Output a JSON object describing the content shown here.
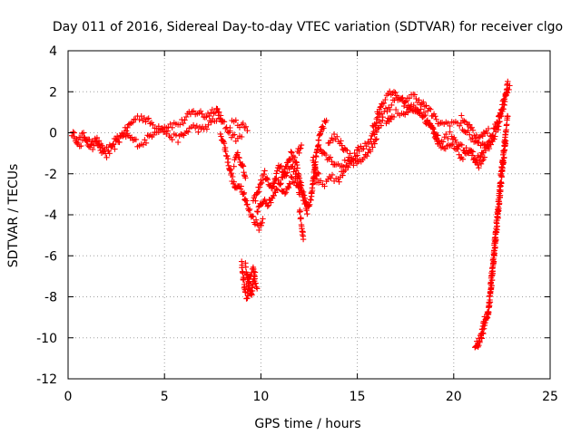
{
  "chart_data": {
    "type": "scatter",
    "title": "Day 011 of 2016, Sidereal Day-to-day VTEC variation (SDTVAR) for receiver clgo",
    "xlabel": "GPS time / hours",
    "ylabel": "SDTVAR / TECUs",
    "xlim": [
      0,
      25
    ],
    "ylim": [
      -12,
      4
    ],
    "xticks": [
      0,
      5,
      10,
      15,
      20,
      25
    ],
    "yticks": [
      4,
      2,
      0,
      -2,
      -4,
      -6,
      -8,
      -10,
      -12
    ],
    "grid": true,
    "marker": "+",
    "color": "#ff0000",
    "series": [
      {
        "name": "SDTVAR",
        "tracks": [
          [
            [
              0.2,
              0.0
            ],
            [
              0.5,
              -0.4
            ],
            [
              0.8,
              -0.1
            ],
            [
              1.1,
              -0.5
            ],
            [
              1.4,
              -0.2
            ],
            [
              1.7,
              -0.7
            ],
            [
              2.0,
              -1.1
            ],
            [
              2.3,
              -0.8
            ],
            [
              2.6,
              -0.4
            ],
            [
              2.9,
              0.0
            ],
            [
              3.2,
              0.4
            ],
            [
              3.5,
              0.7
            ],
            [
              3.8,
              0.8
            ],
            [
              4.1,
              0.6
            ],
            [
              4.4,
              0.4
            ],
            [
              4.7,
              0.3
            ],
            [
              5.0,
              0.3
            ],
            [
              5.3,
              0.4
            ],
            [
              5.6,
              0.4
            ],
            [
              5.9,
              0.5
            ],
            [
              6.2,
              0.8
            ],
            [
              6.5,
              1.0
            ],
            [
              6.8,
              1.0
            ],
            [
              7.1,
              0.8
            ],
            [
              7.4,
              1.0
            ],
            [
              7.7,
              1.2
            ],
            [
              8.0,
              0.6
            ]
          ],
          [
            [
              0.3,
              -0.3
            ],
            [
              0.6,
              -0.6
            ],
            [
              0.9,
              -0.3
            ],
            [
              1.2,
              -0.7
            ],
            [
              1.5,
              -0.5
            ],
            [
              1.8,
              -0.9
            ],
            [
              2.1,
              -0.8
            ],
            [
              2.4,
              -0.4
            ],
            [
              2.7,
              -0.2
            ],
            [
              3.0,
              -0.1
            ],
            [
              3.3,
              -0.3
            ],
            [
              3.6,
              -0.5
            ],
            [
              3.9,
              -0.5
            ],
            [
              4.2,
              -0.2
            ],
            [
              4.5,
              0.1
            ],
            [
              4.8,
              0.2
            ],
            [
              5.1,
              0.0
            ],
            [
              5.4,
              -0.2
            ],
            [
              5.7,
              -0.3
            ],
            [
              6.0,
              -0.1
            ],
            [
              6.3,
              0.2
            ],
            [
              6.6,
              0.3
            ],
            [
              6.9,
              0.1
            ],
            [
              7.2,
              0.3
            ],
            [
              7.5,
              0.6
            ],
            [
              7.8,
              0.7
            ],
            [
              8.1,
              0.4
            ],
            [
              8.4,
              0.0
            ],
            [
              8.7,
              -0.3
            ],
            [
              9.0,
              -0.2
            ]
          ],
          [
            [
              8.4,
              0.4
            ],
            [
              8.7,
              0.5
            ],
            [
              9.0,
              0.4
            ],
            [
              9.3,
              0.1
            ]
          ],
          [
            [
              7.9,
              0.0
            ],
            [
              8.1,
              -0.6
            ],
            [
              8.3,
              -1.4
            ],
            [
              8.5,
              -2.2
            ],
            [
              8.7,
              -2.8
            ],
            [
              8.9,
              -2.5
            ],
            [
              9.1,
              -2.9
            ],
            [
              9.3,
              -3.6
            ],
            [
              9.5,
              -4.0
            ],
            [
              9.7,
              -4.3
            ],
            [
              9.9,
              -4.6
            ],
            [
              10.1,
              -4.2
            ]
          ],
          [
            [
              8.6,
              -1.5
            ],
            [
              8.8,
              -1.0
            ],
            [
              9.0,
              -1.5
            ],
            [
              9.2,
              -2.2
            ]
          ],
          [
            [
              9.6,
              -3.4
            ],
            [
              9.8,
              -3.0
            ],
            [
              10.0,
              -2.4
            ],
            [
              10.2,
              -2.0
            ],
            [
              10.4,
              -2.5
            ],
            [
              10.6,
              -2.8
            ],
            [
              10.8,
              -2.0
            ],
            [
              11.0,
              -1.6
            ],
            [
              11.2,
              -1.9
            ],
            [
              11.4,
              -1.4
            ],
            [
              11.6,
              -1.0
            ],
            [
              11.8,
              -1.4
            ],
            [
              12.0,
              -2.2
            ],
            [
              12.2,
              -3.2
            ],
            [
              12.4,
              -3.8
            ],
            [
              12.6,
              -3.2
            ],
            [
              12.8,
              -1.6
            ],
            [
              13.0,
              -0.4
            ],
            [
              13.2,
              0.3
            ],
            [
              13.4,
              0.6
            ]
          ],
          [
            [
              9.8,
              -3.9
            ],
            [
              10.0,
              -3.5
            ],
            [
              10.2,
              -3.2
            ],
            [
              10.4,
              -3.5
            ],
            [
              10.6,
              -3.1
            ],
            [
              10.8,
              -2.7
            ],
            [
              11.0,
              -2.5
            ],
            [
              11.2,
              -2.9
            ],
            [
              11.4,
              -2.6
            ],
            [
              11.6,
              -2.2
            ],
            [
              11.8,
              -2.4
            ],
            [
              12.0,
              -3.0
            ]
          ],
          [
            [
              10.8,
              -2.3
            ],
            [
              11.0,
              -2.4
            ],
            [
              11.2,
              -2.2
            ],
            [
              11.4,
              -1.8
            ],
            [
              11.6,
              -1.6
            ],
            [
              11.8,
              -1.9
            ],
            [
              12.0,
              -2.5
            ],
            [
              12.2,
              -3.0
            ],
            [
              12.4,
              -3.5
            ]
          ],
          [
            [
              12.0,
              -3.8
            ],
            [
              12.1,
              -4.4
            ],
            [
              12.2,
              -5.2
            ]
          ],
          [
            [
              11.9,
              -1.0
            ],
            [
              12.1,
              -0.6
            ]
          ],
          [
            [
              9.2,
              -6.5
            ],
            [
              9.3,
              -7.0
            ],
            [
              9.4,
              -7.6
            ],
            [
              9.5,
              -8.0
            ],
            [
              9.6,
              -7.3
            ],
            [
              9.7,
              -6.8
            ]
          ],
          [
            [
              9.0,
              -6.4
            ],
            [
              9.1,
              -7.2
            ],
            [
              9.2,
              -7.9
            ],
            [
              9.3,
              -8.1
            ],
            [
              9.4,
              -7.2
            ],
            [
              9.6,
              -6.7
            ],
            [
              9.7,
              -7.3
            ],
            [
              9.8,
              -7.6
            ]
          ],
          [
            [
              12.7,
              -1.2
            ],
            [
              12.8,
              -1.6
            ],
            [
              12.9,
              -2.2
            ],
            [
              13.0,
              -2.0
            ]
          ],
          [
            [
              12.8,
              -2.4
            ],
            [
              13.1,
              -2.5
            ],
            [
              13.4,
              -2.4
            ],
            [
              13.7,
              -2.2
            ],
            [
              14.0,
              -2.3
            ],
            [
              14.3,
              -1.9
            ],
            [
              14.6,
              -1.6
            ],
            [
              14.9,
              -1.5
            ],
            [
              15.2,
              -1.3
            ],
            [
              15.5,
              -1.0
            ],
            [
              15.8,
              -0.6
            ],
            [
              16.0,
              -0.3
            ]
          ],
          [
            [
              13.0,
              -0.6
            ],
            [
              13.3,
              -1.0
            ],
            [
              13.6,
              -1.3
            ],
            [
              13.9,
              -1.5
            ],
            [
              14.2,
              -1.6
            ],
            [
              14.5,
              -1.4
            ],
            [
              14.8,
              -1.2
            ],
            [
              15.1,
              -0.8
            ],
            [
              15.4,
              -0.6
            ],
            [
              15.7,
              -0.3
            ],
            [
              16.0,
              0.2
            ],
            [
              16.3,
              0.6
            ]
          ],
          [
            [
              13.5,
              -0.6
            ],
            [
              13.8,
              -0.2
            ],
            [
              14.1,
              -0.4
            ],
            [
              14.4,
              -0.9
            ],
            [
              14.7,
              -1.2
            ],
            [
              15.0,
              -1.1
            ]
          ],
          [
            [
              15.8,
              0.2
            ],
            [
              16.1,
              0.7
            ],
            [
              16.4,
              1.0
            ],
            [
              16.7,
              1.3
            ],
            [
              17.0,
              1.6
            ],
            [
              17.3,
              1.5
            ],
            [
              17.6,
              1.7
            ],
            [
              17.9,
              1.8
            ],
            [
              18.2,
              1.6
            ],
            [
              18.5,
              1.3
            ],
            [
              18.8,
              1.0
            ],
            [
              19.1,
              0.6
            ],
            [
              19.4,
              0.4
            ],
            [
              19.7,
              0.5
            ],
            [
              20.0,
              0.5
            ],
            [
              20.3,
              0.4
            ],
            [
              20.6,
              0.1
            ],
            [
              20.9,
              -0.2
            ],
            [
              21.2,
              -0.5
            ],
            [
              21.5,
              -0.6
            ],
            [
              21.8,
              -0.8
            ],
            [
              22.1,
              -0.2
            ],
            [
              22.3,
              0.3
            ],
            [
              22.5,
              1.0
            ],
            [
              22.7,
              1.8
            ],
            [
              22.8,
              2.5
            ]
          ],
          [
            [
              16.0,
              0.8
            ],
            [
              16.3,
              1.5
            ],
            [
              16.6,
              1.8
            ],
            [
              16.9,
              2.0
            ],
            [
              17.2,
              1.7
            ],
            [
              17.5,
              1.4
            ],
            [
              17.8,
              1.2
            ],
            [
              18.1,
              1.1
            ],
            [
              18.4,
              0.8
            ],
            [
              18.7,
              0.4
            ],
            [
              19.0,
              0.0
            ],
            [
              19.3,
              -0.4
            ],
            [
              19.6,
              -0.2
            ],
            [
              19.9,
              -0.1
            ],
            [
              20.2,
              -0.5
            ],
            [
              20.5,
              -0.8
            ],
            [
              20.8,
              -1.0
            ],
            [
              21.1,
              -1.3
            ],
            [
              21.4,
              -1.1
            ],
            [
              21.7,
              -0.6
            ],
            [
              22.0,
              -0.1
            ],
            [
              22.3,
              0.6
            ],
            [
              22.6,
              1.6
            ],
            [
              22.9,
              2.3
            ]
          ],
          [
            [
              16.5,
              0.4
            ],
            [
              16.8,
              0.9
            ],
            [
              17.1,
              1.0
            ],
            [
              17.4,
              0.9
            ],
            [
              17.7,
              1.1
            ],
            [
              18.0,
              1.3
            ],
            [
              18.3,
              1.0
            ],
            [
              18.6,
              0.7
            ],
            [
              18.9,
              0.3
            ],
            [
              19.2,
              -0.6
            ],
            [
              19.5,
              -0.9
            ],
            [
              19.8,
              -0.6
            ],
            [
              20.1,
              -0.8
            ],
            [
              20.4,
              -1.2
            ],
            [
              20.7,
              -0.9
            ],
            [
              21.0,
              -1.1
            ],
            [
              21.3,
              -1.6
            ],
            [
              21.6,
              -1.2
            ]
          ],
          [
            [
              20.4,
              0.7
            ],
            [
              20.7,
              0.4
            ],
            [
              21.0,
              0.0
            ],
            [
              21.3,
              -0.4
            ],
            [
              21.5,
              -0.2
            ],
            [
              21.8,
              0.2
            ]
          ],
          [
            [
              21.1,
              -10.6
            ],
            [
              21.3,
              -10.2
            ],
            [
              21.5,
              -9.8
            ],
            [
              21.7,
              -9.2
            ],
            [
              21.8,
              -8.6
            ],
            [
              21.9,
              -7.6
            ],
            [
              22.0,
              -6.6
            ],
            [
              22.1,
              -5.6
            ],
            [
              22.2,
              -4.6
            ],
            [
              22.3,
              -3.6
            ],
            [
              22.4,
              -2.6
            ],
            [
              22.5,
              -1.6
            ],
            [
              22.6,
              -0.8
            ],
            [
              22.7,
              0.0
            ],
            [
              22.8,
              0.8
            ]
          ],
          [
            [
              21.2,
              -10.3
            ],
            [
              21.4,
              -10.0
            ],
            [
              21.6,
              -9.1
            ],
            [
              21.8,
              -8.8
            ],
            [
              21.9,
              -8.0
            ],
            [
              22.0,
              -7.0
            ],
            [
              22.1,
              -6.0
            ],
            [
              22.2,
              -5.0
            ],
            [
              22.3,
              -4.0
            ],
            [
              22.4,
              -3.0
            ],
            [
              22.5,
              -2.0
            ],
            [
              22.6,
              -1.2
            ],
            [
              22.7,
              -0.4
            ]
          ]
        ]
      }
    ]
  }
}
